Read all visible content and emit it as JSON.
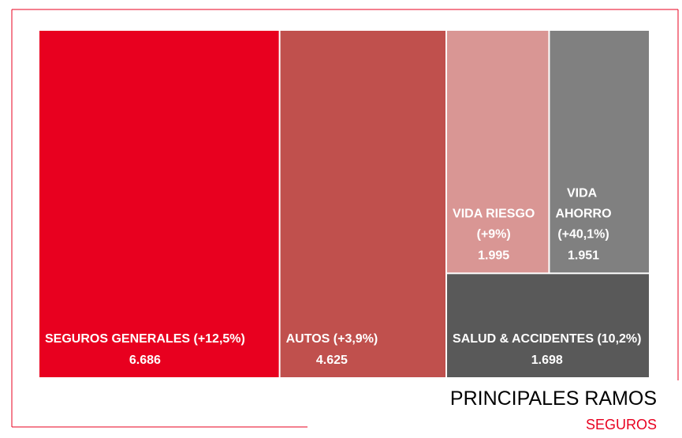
{
  "chart_data": {
    "type": "treemap",
    "title": "PRINCIPALES RAMOS",
    "subtitle": "SEGUROS",
    "categories": [
      "SEGUROS GENERALES",
      "AUTOS",
      "VIDA RIESGO",
      "VIDA AHORRO",
      "SALUD & ACCIDENTES"
    ],
    "values": [
      6686,
      4625,
      1995,
      1951,
      1698
    ],
    "value_labels": [
      "6.686",
      "4.625",
      "1.995",
      "1.951",
      "1.698"
    ],
    "changes": [
      12.5,
      3.9,
      9,
      40.1,
      10.2
    ],
    "change_labels": [
      "(+12,5%)",
      "(+3,9%)",
      "(+9%)",
      "(+40,1%)",
      "(10,2%)"
    ],
    "colors": [
      "#e8001f",
      "#c0504d",
      "#d99694",
      "#808080",
      "#595959"
    ]
  }
}
